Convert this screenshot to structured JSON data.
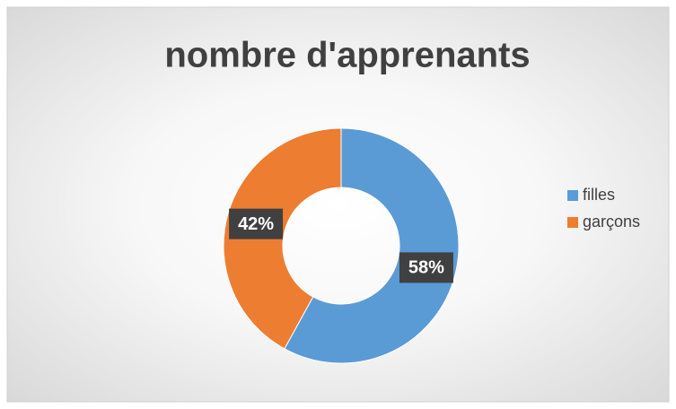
{
  "chart_data": {
    "type": "donut",
    "title": "nombre d'apprenants",
    "categories": [
      "filles",
      "garçons"
    ],
    "values": [
      58,
      42
    ],
    "value_labels": [
      "58%",
      "42%"
    ],
    "colors": [
      "#5b9bd5",
      "#ed7d31"
    ],
    "legend": "right"
  }
}
